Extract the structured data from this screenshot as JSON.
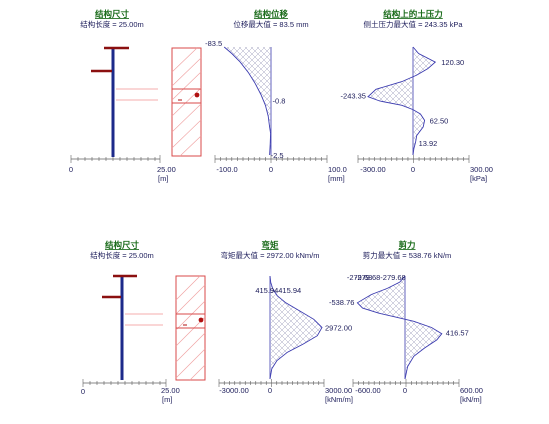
{
  "colors": {
    "structure": "#1c2a8a",
    "support": "#8b1010",
    "soil": "#d84a4a",
    "curve": "#3c3cb0",
    "hatch": "#9a9ab8",
    "axis": "#606060",
    "title": "#1a6b1a"
  },
  "panels": {
    "struct_top": {
      "title": "结构尺寸",
      "subtitle": "结构长度 = 25.00m",
      "tick_labels": [
        "0",
        "25.00"
      ],
      "unit": "[m]"
    },
    "struct_bottom": {
      "title": "结构尺寸",
      "subtitle": "结构长度 = 25.00m",
      "tick_labels": [
        "0",
        "25.00"
      ],
      "unit": "[m]"
    }
  },
  "chart_data": [
    {
      "type": "area",
      "title": "结构位移",
      "subtitle": "位移最大值 = 83.5 mm",
      "unit": "[mm]",
      "tick_labels": [
        "-100.0",
        "0",
        "100.0"
      ],
      "xlim": [
        -100,
        100
      ],
      "points": [
        [
          -83.5,
          0
        ],
        [
          -70,
          1.5
        ],
        [
          -55,
          3.5
        ],
        [
          -40,
          6
        ],
        [
          -28,
          8.5
        ],
        [
          -18,
          11
        ],
        [
          -10,
          13.5
        ],
        [
          -5,
          16
        ],
        [
          -2.5,
          18.5
        ],
        [
          -0.8,
          20
        ],
        [
          -1.5,
          22.5
        ],
        [
          -2.5,
          25
        ]
      ],
      "data_labels": [
        {
          "text": "-83.5",
          "value": -83.5,
          "depth": 0
        },
        {
          "text": "-0.8",
          "value": -0.8,
          "depth": 12.8
        },
        {
          "text": "-2.5",
          "value": -2.5,
          "depth": 25
        }
      ]
    },
    {
      "type": "area",
      "title": "结构上的土压力",
      "subtitle": "侧土压力最大值 = 243.35 kPa",
      "unit": "[kPa]",
      "tick_labels": [
        "-300.00",
        "0",
        "300.00"
      ],
      "xlim": [
        -300,
        300
      ],
      "points": [
        [
          0,
          0
        ],
        [
          30,
          1.5
        ],
        [
          120.3,
          3.5
        ],
        [
          80,
          5
        ],
        [
          20,
          6.5
        ],
        [
          -60,
          8
        ],
        [
          -200,
          9.8
        ],
        [
          -243.35,
          11.5
        ],
        [
          -180,
          12.5
        ],
        [
          -60,
          13.5
        ],
        [
          0,
          14.5
        ],
        [
          40,
          15.5
        ],
        [
          62.5,
          17
        ],
        [
          55,
          18.5
        ],
        [
          20,
          20.5
        ],
        [
          13.92,
          22
        ],
        [
          5,
          23.5
        ],
        [
          0,
          25
        ]
      ],
      "data_labels": [
        {
          "text": "120.30",
          "value": 120.3,
          "depth": 3.5
        },
        {
          "text": "-243.35",
          "value": -243.35,
          "depth": 11.5
        },
        {
          "text": "62.50",
          "value": 62.5,
          "depth": 17
        },
        {
          "text": "13.92",
          "value": 13.92,
          "depth": 22
        }
      ]
    },
    {
      "type": "area",
      "title": "弯矩",
      "subtitle": "弯矩最大值 = 2972.00 kNm/m",
      "unit": "[kNm/m]",
      "tick_labels": [
        "-3000.00",
        "0",
        "3000.00"
      ],
      "xlim": [
        -3000,
        3000
      ],
      "points": [
        [
          0,
          0
        ],
        [
          40,
          1.5
        ],
        [
          150,
          3
        ],
        [
          415.94,
          4.8
        ],
        [
          900,
          6.5
        ],
        [
          1700,
          8.5
        ],
        [
          2500,
          10.5
        ],
        [
          2972,
          12.5
        ],
        [
          2700,
          14.5
        ],
        [
          1900,
          16.5
        ],
        [
          1000,
          18.5
        ],
        [
          400,
          20.5
        ],
        [
          100,
          22.5
        ],
        [
          0,
          25
        ]
      ],
      "data_labels": [
        {
          "text": "415.94",
          "value": 415.94,
          "depth": 4.8
        },
        {
          "text": "415.94",
          "value": 415.94,
          "depth": 4.8
        },
        {
          "text": "2972.00",
          "value": 2972,
          "depth": 12.5
        }
      ]
    },
    {
      "type": "area",
      "title": "剪力",
      "subtitle": "剪力最大值 = 538.76 kN/m",
      "unit": "[kN/m]",
      "tick_labels": [
        "-600.00",
        "0",
        "600.00"
      ],
      "xlim": [
        -600,
        600
      ],
      "points": [
        [
          0,
          0
        ],
        [
          -60,
          1.5
        ],
        [
          -200,
          3
        ],
        [
          -380,
          4.5
        ],
        [
          -538.76,
          6.5
        ],
        [
          -480,
          7.8
        ],
        [
          -300,
          9
        ],
        [
          -100,
          10
        ],
        [
          100,
          11
        ],
        [
          300,
          12.5
        ],
        [
          416.57,
          14
        ],
        [
          360,
          15.5
        ],
        [
          220,
          17.5
        ],
        [
          100,
          19.5
        ],
        [
          30,
          22
        ],
        [
          0,
          25
        ]
      ],
      "data_labels": [
        {
          "text": "-279.68",
          "value": -279.68,
          "depth": 0.5
        },
        {
          "text": "-279.68",
          "value": -279.68,
          "depth": 0.5
        },
        {
          "text": "-279.68",
          "value": -279.68,
          "depth": 0.5
        },
        {
          "text": "-538.76",
          "value": -538.76,
          "depth": 6.5
        },
        {
          "text": "416.57",
          "value": 416.57,
          "depth": 14
        }
      ]
    }
  ]
}
